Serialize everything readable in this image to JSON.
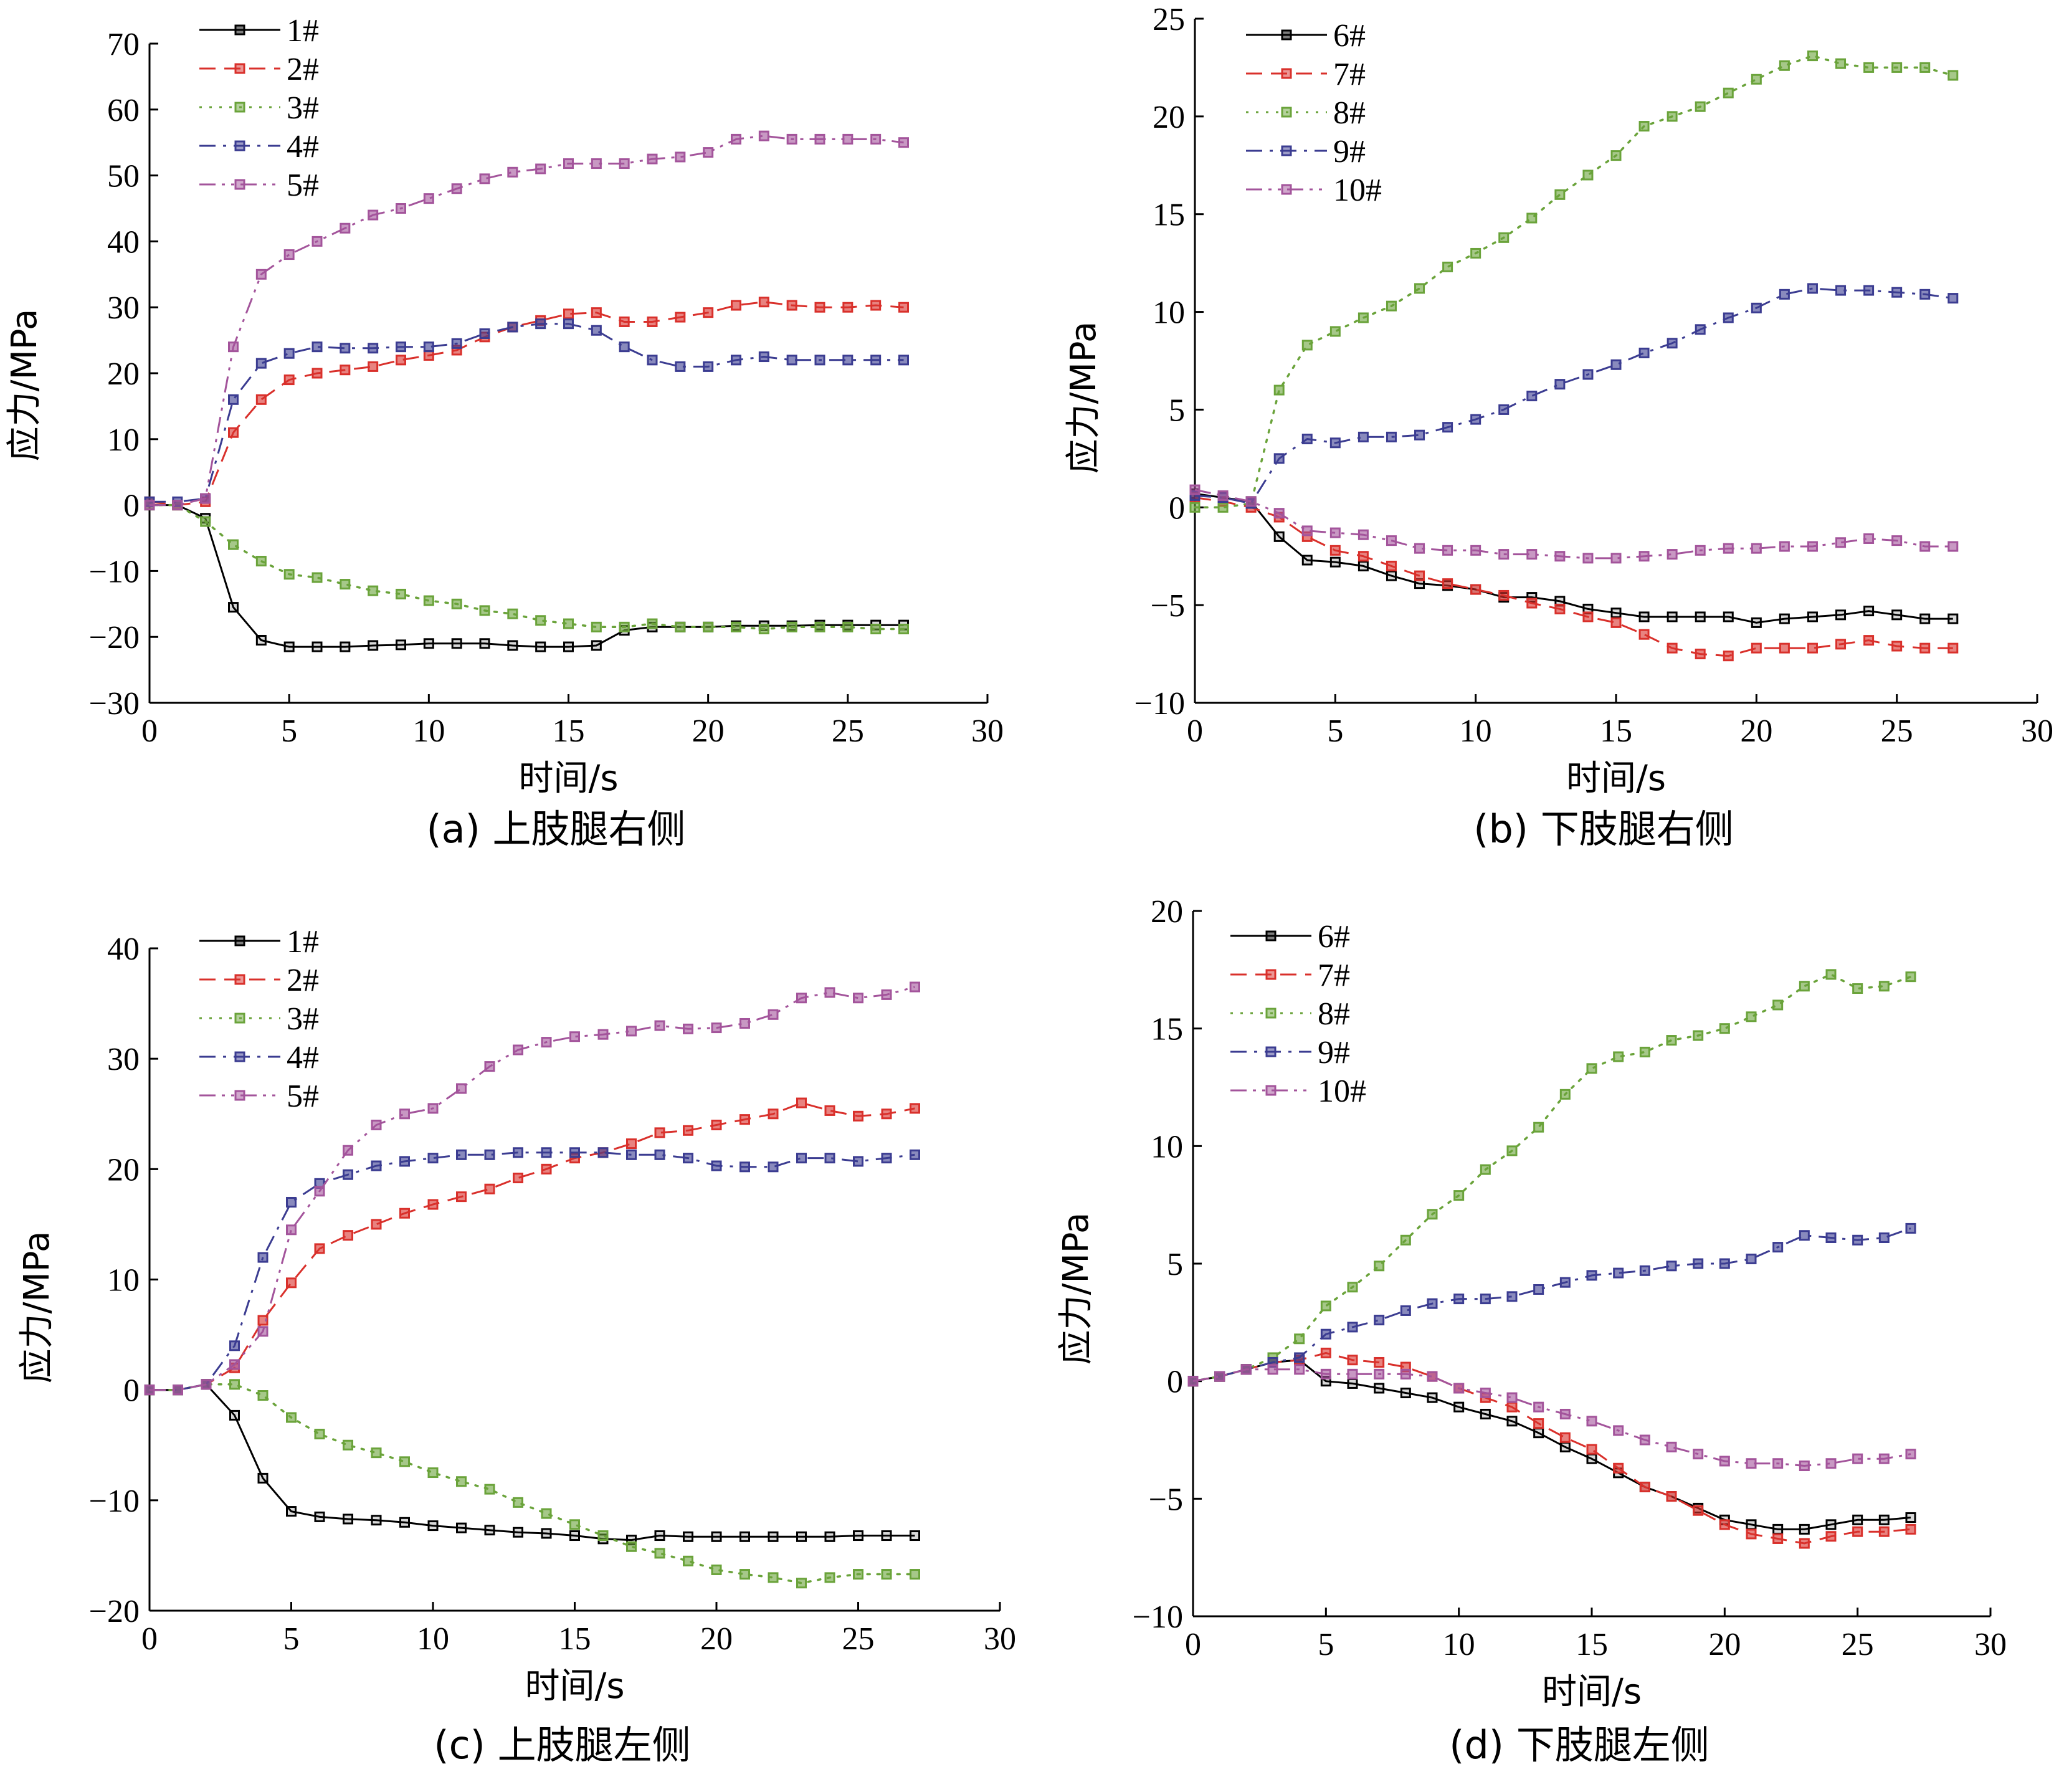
{
  "chart_data": [
    {
      "type": "line",
      "caption": "(a) 上肢腿右侧",
      "xlabel": "时间/s",
      "ylabel": "应力/MPa",
      "xlim": [
        0,
        30
      ],
      "ylim": [
        -30,
        70
      ],
      "xticks": [
        0,
        5,
        10,
        15,
        20,
        25,
        30
      ],
      "yticks": [
        -30,
        -20,
        -10,
        0,
        10,
        20,
        30,
        40,
        50,
        60,
        70
      ],
      "legend_position": "top-left",
      "x": [
        0,
        1,
        2,
        3,
        4,
        5,
        6,
        7,
        8,
        9,
        10,
        11,
        12,
        13,
        14,
        15,
        16,
        17,
        18,
        19,
        20,
        21,
        22,
        23,
        24,
        25,
        26,
        27
      ],
      "series": [
        {
          "name": "1#",
          "color": "#000000",
          "dash": "solid",
          "values": [
            0,
            0,
            -2,
            -15.5,
            -20.5,
            -21.5,
            -21.5,
            -21.5,
            -21.3,
            -21.2,
            -21,
            -21,
            -21,
            -21.3,
            -21.5,
            -21.5,
            -21.3,
            -19,
            -18.5,
            -18.5,
            -18.5,
            -18.3,
            -18.3,
            -18.3,
            -18.2,
            -18.2,
            -18.2,
            -18.2
          ]
        },
        {
          "name": "2#",
          "color": "#d9302b",
          "dash": "dashed",
          "values": [
            0.5,
            0,
            0.5,
            11,
            16,
            19,
            20,
            20.5,
            21,
            22,
            22.7,
            23.5,
            25.5,
            27,
            28,
            29,
            29.2,
            27.8,
            27.8,
            28.5,
            29.2,
            30.3,
            30.8,
            30.3,
            30,
            30,
            30.3,
            30
          ]
        },
        {
          "name": "3#",
          "color": "#6aa33a",
          "dash": "dotted",
          "values": [
            0,
            0,
            -2.5,
            -6,
            -8.5,
            -10.5,
            -11,
            -12,
            -13,
            -13.5,
            -14.5,
            -15,
            -16,
            -16.5,
            -17.5,
            -18,
            -18.5,
            -18.5,
            -18,
            -18.5,
            -18.5,
            -18.5,
            -18.8,
            -18.5,
            -18.5,
            -18.5,
            -18.8,
            -18.8
          ]
        },
        {
          "name": "4#",
          "color": "#3b3c91",
          "dash": "dashdot",
          "values": [
            0.5,
            0.5,
            1,
            16,
            21.5,
            23,
            24,
            23.8,
            23.8,
            24,
            24,
            24.5,
            26,
            27,
            27.5,
            27.5,
            26.5,
            24,
            22,
            21,
            21,
            22,
            22.5,
            22,
            22,
            22,
            22,
            22
          ]
        },
        {
          "name": "5#",
          "color": "#a3549b",
          "dash": "dashdotdot",
          "values": [
            0,
            0,
            1,
            24,
            35,
            38,
            40,
            42,
            44,
            45,
            46.5,
            48,
            49.5,
            50.5,
            51,
            51.8,
            51.8,
            51.8,
            52.5,
            52.8,
            53.5,
            55.5,
            56,
            55.5,
            55.5,
            55.5,
            55.5,
            55
          ]
        }
      ]
    },
    {
      "type": "line",
      "caption": "(b) 下肢腿右侧",
      "xlabel": "时间/s",
      "ylabel": "应力/MPa",
      "xlim": [
        0,
        30
      ],
      "ylim": [
        -10,
        25
      ],
      "xticks": [
        0,
        5,
        10,
        15,
        20,
        25,
        30
      ],
      "yticks": [
        -10,
        -5,
        0,
        5,
        10,
        15,
        20,
        25
      ],
      "legend_position": "top-left",
      "x": [
        0,
        1,
        2,
        3,
        4,
        5,
        6,
        7,
        8,
        9,
        10,
        11,
        12,
        13,
        14,
        15,
        16,
        17,
        18,
        19,
        20,
        21,
        22,
        23,
        24,
        25,
        26,
        27
      ],
      "series": [
        {
          "name": "6#",
          "color": "#000000",
          "dash": "solid",
          "values": [
            0.7,
            0.5,
            0.3,
            -1.5,
            -2.7,
            -2.8,
            -3,
            -3.5,
            -3.9,
            -4,
            -4.2,
            -4.6,
            -4.6,
            -4.8,
            -5.2,
            -5.4,
            -5.6,
            -5.6,
            -5.6,
            -5.6,
            -5.9,
            -5.7,
            -5.6,
            -5.5,
            -5.3,
            -5.5,
            -5.7,
            -5.7
          ]
        },
        {
          "name": "7#",
          "color": "#d9302b",
          "dash": "dashed",
          "values": [
            0.5,
            0.3,
            0,
            -0.5,
            -1.5,
            -2.2,
            -2.5,
            -3,
            -3.5,
            -3.9,
            -4.2,
            -4.5,
            -4.9,
            -5.2,
            -5.6,
            -5.9,
            -6.5,
            -7.2,
            -7.5,
            -7.6,
            -7.2,
            -7.2,
            -7.2,
            -7,
            -6.8,
            -7.1,
            -7.2,
            -7.2
          ]
        },
        {
          "name": "8#",
          "color": "#6aa33a",
          "dash": "dotted",
          "values": [
            0,
            0,
            0.2,
            6,
            8.3,
            9,
            9.7,
            10.3,
            11.2,
            12.3,
            13,
            13.8,
            14.8,
            16,
            17,
            18,
            19.5,
            20,
            20.5,
            21.2,
            21.9,
            22.6,
            23.1,
            22.7,
            22.5,
            22.5,
            22.5,
            22.1
          ]
        },
        {
          "name": "9#",
          "color": "#3b3c91",
          "dash": "dashdot",
          "values": [
            0.6,
            0.5,
            0.2,
            2.5,
            3.5,
            3.3,
            3.6,
            3.6,
            3.7,
            4.1,
            4.5,
            5,
            5.7,
            6.3,
            6.8,
            7.3,
            7.9,
            8.4,
            9.1,
            9.7,
            10.2,
            10.9,
            11.2,
            11.1,
            11.1,
            11,
            10.9,
            10.7
          ]
        },
        {
          "name": "10#",
          "color": "#a3549b",
          "dash": "dashdotdot",
          "values": [
            0.9,
            0.6,
            0.3,
            -0.3,
            -1.2,
            -1.3,
            -1.4,
            -1.7,
            -2.1,
            -2.2,
            -2.2,
            -2.4,
            -2.4,
            -2.5,
            -2.6,
            -2.6,
            -2.5,
            -2.4,
            -2.2,
            -2.1,
            -2.1,
            -2,
            -2,
            -1.8,
            -1.6,
            -1.7,
            -2,
            -2
          ]
        }
      ]
    },
    {
      "type": "line",
      "caption": "(c) 上肢腿左侧",
      "xlabel": "时间/s",
      "ylabel": "应力/MPa",
      "xlim": [
        0,
        30
      ],
      "ylim": [
        -20,
        40
      ],
      "xticks": [
        0,
        5,
        10,
        15,
        20,
        25,
        30
      ],
      "yticks": [
        -20,
        -10,
        0,
        10,
        20,
        30,
        40
      ],
      "legend_position": "top-left",
      "x": [
        0,
        1,
        2,
        3,
        4,
        5,
        6,
        7,
        8,
        9,
        10,
        11,
        12,
        13,
        14,
        15,
        16,
        17,
        18,
        19,
        20,
        21,
        22,
        23,
        24,
        25,
        26,
        27
      ],
      "series": [
        {
          "name": "1#",
          "color": "#000000",
          "dash": "solid",
          "values": [
            0,
            0,
            0.5,
            -2.3,
            -8,
            -11,
            -11.5,
            -11.7,
            -11.8,
            -12,
            -12.3,
            -12.5,
            -12.7,
            -12.9,
            -13,
            -13.2,
            -13.5,
            -13.6,
            -13.2,
            -13.3,
            -13.3,
            -13.3,
            -13.3,
            -13.3,
            -13.3,
            -13.2,
            -13.2,
            -13.2
          ]
        },
        {
          "name": "2#",
          "color": "#d9302b",
          "dash": "dashed",
          "values": [
            0,
            0,
            0.5,
            2,
            6.3,
            9.7,
            12.8,
            14,
            15,
            16,
            16.8,
            17.5,
            18.2,
            19.2,
            20,
            21,
            21.5,
            22.3,
            23.3,
            23.5,
            24,
            24.5,
            25,
            26,
            25.3,
            24.8,
            25,
            25.5
          ]
        },
        {
          "name": "3#",
          "color": "#6aa33a",
          "dash": "dotted",
          "values": [
            0,
            0,
            0.5,
            0.5,
            -0.5,
            -2.5,
            -4,
            -5,
            -5.7,
            -6.5,
            -7.5,
            -8.3,
            -9,
            -10.2,
            -11.2,
            -12.2,
            -13.2,
            -14.2,
            -14.8,
            -15.5,
            -16.3,
            -16.7,
            -17,
            -17.5,
            -17,
            -16.7,
            -16.7,
            -16.7
          ]
        },
        {
          "name": "4#",
          "color": "#3b3c91",
          "dash": "dashdot",
          "values": [
            0,
            0,
            0.5,
            4,
            12,
            17,
            18.7,
            19.5,
            20.3,
            20.7,
            21,
            21.3,
            21.3,
            21.5,
            21.5,
            21.5,
            21.5,
            21.3,
            21.3,
            21,
            20.3,
            20.2,
            20.2,
            21,
            21,
            20.7,
            21,
            21.3
          ]
        },
        {
          "name": "5#",
          "color": "#a3549b",
          "dash": "dashdotdot",
          "values": [
            0,
            0,
            0.5,
            2.3,
            5.3,
            14.5,
            18,
            21.7,
            24,
            25,
            25.5,
            27.3,
            29.3,
            30.8,
            31.5,
            32,
            32.2,
            32.5,
            33,
            32.7,
            32.8,
            33.2,
            34,
            35.5,
            36,
            35.5,
            35.8,
            36.5
          ]
        }
      ]
    },
    {
      "type": "line",
      "caption": "(d) 下肢腿左侧",
      "xlabel": "时间/s",
      "ylabel": "应力/MPa",
      "xlim": [
        0,
        30
      ],
      "ylim": [
        -10,
        20
      ],
      "xticks": [
        0,
        5,
        10,
        15,
        20,
        25,
        30
      ],
      "yticks": [
        -10,
        -5,
        0,
        5,
        10,
        15,
        20
      ],
      "legend_position": "top-left",
      "x": [
        0,
        1,
        2,
        3,
        4,
        5,
        6,
        7,
        8,
        9,
        10,
        11,
        12,
        13,
        14,
        15,
        16,
        17,
        18,
        19,
        20,
        21,
        22,
        23,
        24,
        25,
        26,
        27
      ],
      "series": [
        {
          "name": "6#",
          "color": "#000000",
          "dash": "solid",
          "values": [
            0,
            0.2,
            0.5,
            0.8,
            0.9,
            0,
            -0.1,
            -0.3,
            -0.5,
            -0.7,
            -1.1,
            -1.4,
            -1.7,
            -2.2,
            -2.8,
            -3.3,
            -3.9,
            -4.5,
            -4.9,
            -5.4,
            -5.9,
            -6.1,
            -6.3,
            -6.3,
            -6.1,
            -5.9,
            -5.9,
            -5.8
          ]
        },
        {
          "name": "7#",
          "color": "#d9302b",
          "dash": "dashed",
          "values": [
            0,
            0.2,
            0.5,
            0.8,
            0.9,
            1.2,
            0.9,
            0.8,
            0.6,
            0.2,
            -0.3,
            -0.7,
            -1.1,
            -1.8,
            -2.4,
            -2.9,
            -3.7,
            -4.5,
            -4.9,
            -5.5,
            -6.1,
            -6.5,
            -6.7,
            -6.9,
            -6.6,
            -6.4,
            -6.4,
            -6.3
          ]
        },
        {
          "name": "8#",
          "color": "#6aa33a",
          "dash": "dotted",
          "values": [
            0,
            0.2,
            0.5,
            1,
            1.8,
            3.2,
            4,
            4.9,
            6,
            7.1,
            7.9,
            9,
            9.8,
            10.8,
            12.2,
            13.3,
            13.8,
            14,
            14.5,
            14.7,
            15,
            15.5,
            16,
            16.8,
            17.3,
            16.7,
            16.8,
            17.2
          ]
        },
        {
          "name": "9#",
          "color": "#3b3c91",
          "dash": "dashdot",
          "values": [
            0,
            0.2,
            0.5,
            0.8,
            1,
            2,
            2.3,
            2.6,
            3,
            3.3,
            3.5,
            3.5,
            3.6,
            3.9,
            4.2,
            4.5,
            4.6,
            4.7,
            4.9,
            5,
            5,
            5.2,
            5.7,
            6.2,
            6.1,
            6,
            6.1,
            6.5
          ]
        },
        {
          "name": "10#",
          "color": "#a3549b",
          "dash": "dashdotdot",
          "values": [
            0,
            0.2,
            0.5,
            0.5,
            0.5,
            0.3,
            0.3,
            0.3,
            0.3,
            0.2,
            -0.3,
            -0.5,
            -0.7,
            -1.1,
            -1.4,
            -1.7,
            -2.1,
            -2.5,
            -2.8,
            -3.1,
            -3.4,
            -3.5,
            -3.5,
            -3.6,
            -3.5,
            -3.3,
            -3.3,
            -3.1
          ]
        }
      ]
    }
  ]
}
